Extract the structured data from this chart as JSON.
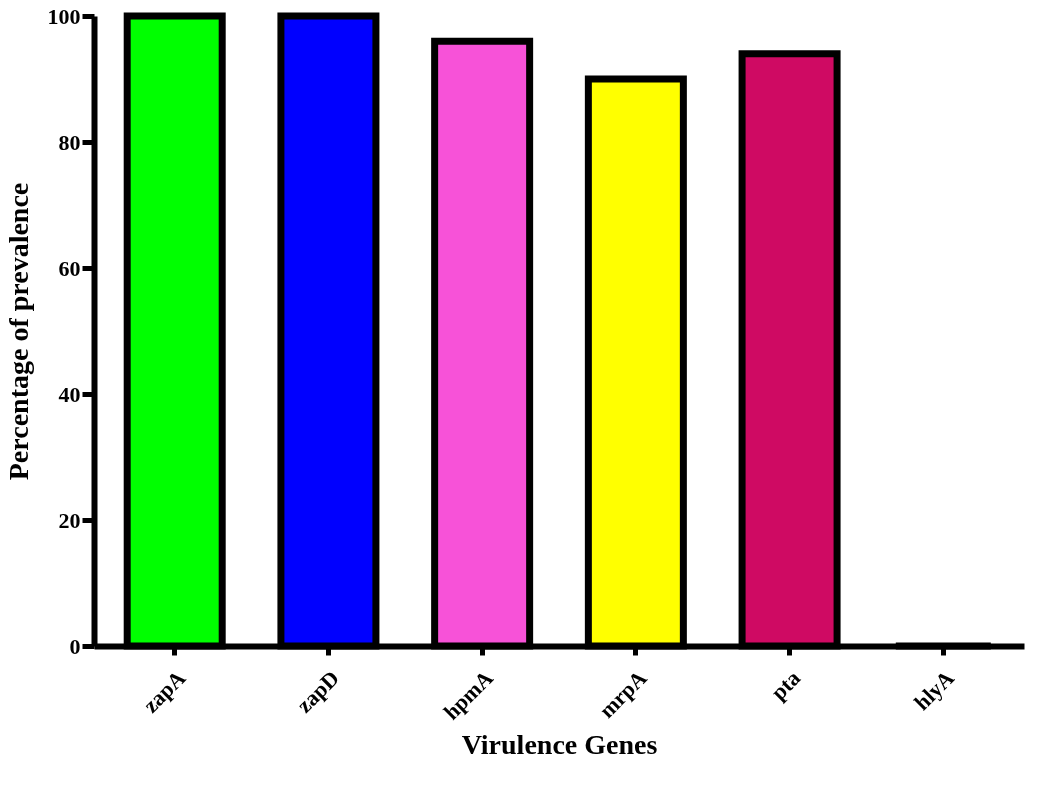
{
  "chart_data": {
    "type": "bar",
    "xlabel": "Virulence Genes",
    "ylabel": "Percentage of prevalence",
    "categories": [
      "zapA",
      "zapD",
      "hpmA",
      "mrpA",
      "pta",
      "hlyA"
    ],
    "values": [
      100,
      100,
      96,
      90,
      94,
      0
    ],
    "colors": [
      "#00ff00",
      "#0000ff",
      "#f752d8",
      "#ffff00",
      "#cf0a63",
      "#000000"
    ],
    "ylim": [
      0,
      100
    ],
    "yticks": [
      0,
      20,
      40,
      60,
      80,
      100
    ],
    "grid": false
  }
}
